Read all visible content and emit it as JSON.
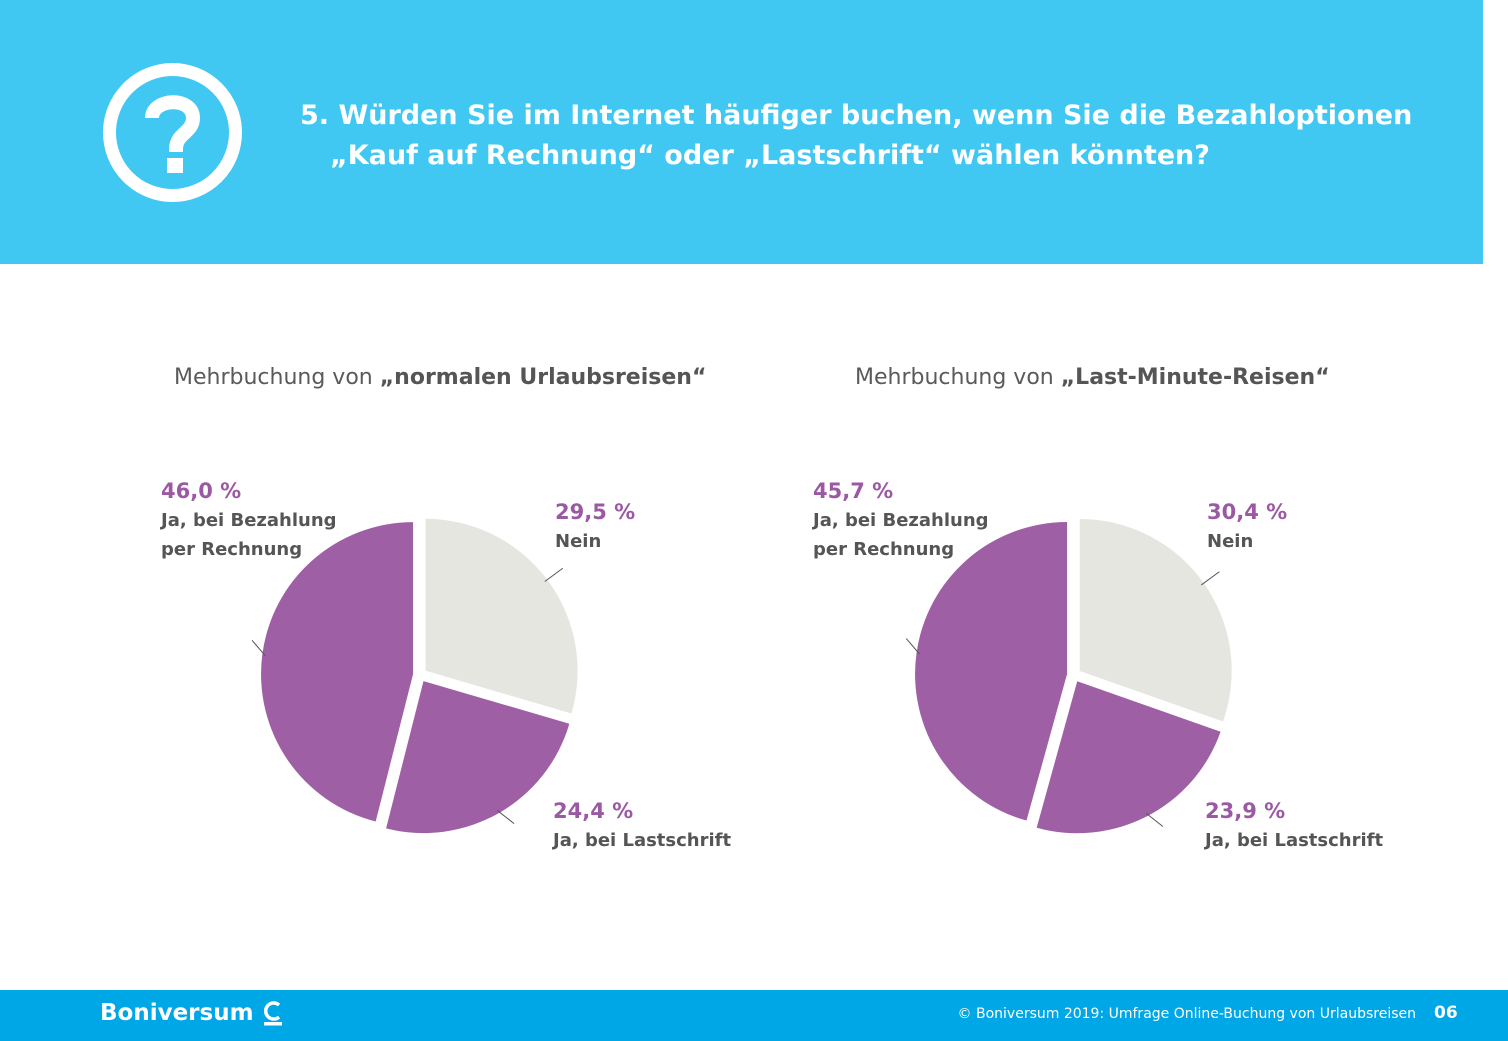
{
  "header": {
    "question_number": "5.",
    "title_line1": "Würden Sie im Internet häufiger buchen, wenn Sie die Bezahloptionen",
    "title_line2": "„Kauf auf Rechnung“ oder „Lastschrift“ wählen könnten?"
  },
  "colors": {
    "header_bg": "#40c8f3",
    "footer_bg": "#00a7e7",
    "purple": "#9f5fa5",
    "grey": "#e6e6e1",
    "label_purple": "#9b59a4"
  },
  "chart_data": [
    {
      "type": "pie",
      "title_prefix": "Mehrbuchung von ",
      "title_bold": "„normalen Urlaubsreisen“",
      "slices": [
        {
          "pct": "29,5 %",
          "value": 29.5,
          "label": "Nein",
          "color": "#e6e6e1"
        },
        {
          "pct": "24,4 %",
          "value": 24.4,
          "label": "Ja, bei Lastschrift",
          "color": "#9f5fa5"
        },
        {
          "pct": "46,0 %",
          "value": 46.0,
          "label_line1": "Ja, bei Bezahlung",
          "label_line2": "per Rechnung",
          "color": "#9f5fa5"
        }
      ]
    },
    {
      "type": "pie",
      "title_prefix": "Mehrbuchung von ",
      "title_bold": "„Last-Minute-Reisen“",
      "slices": [
        {
          "pct": "30,4 %",
          "value": 30.4,
          "label": "Nein",
          "color": "#e6e6e1"
        },
        {
          "pct": "23,9 %",
          "value": 23.9,
          "label": "Ja, bei Lastschrift",
          "color": "#9f5fa5"
        },
        {
          "pct": "45,7 %",
          "value": 45.7,
          "label_line1": "Ja, bei Bezahlung",
          "label_line2": "per Rechnung",
          "color": "#9f5fa5"
        }
      ]
    }
  ],
  "footer": {
    "brand": "Boniversum",
    "copyright": "© Boniversum 2019: Umfrage Online-Buchung von Urlaubsreisen",
    "page": "06"
  }
}
